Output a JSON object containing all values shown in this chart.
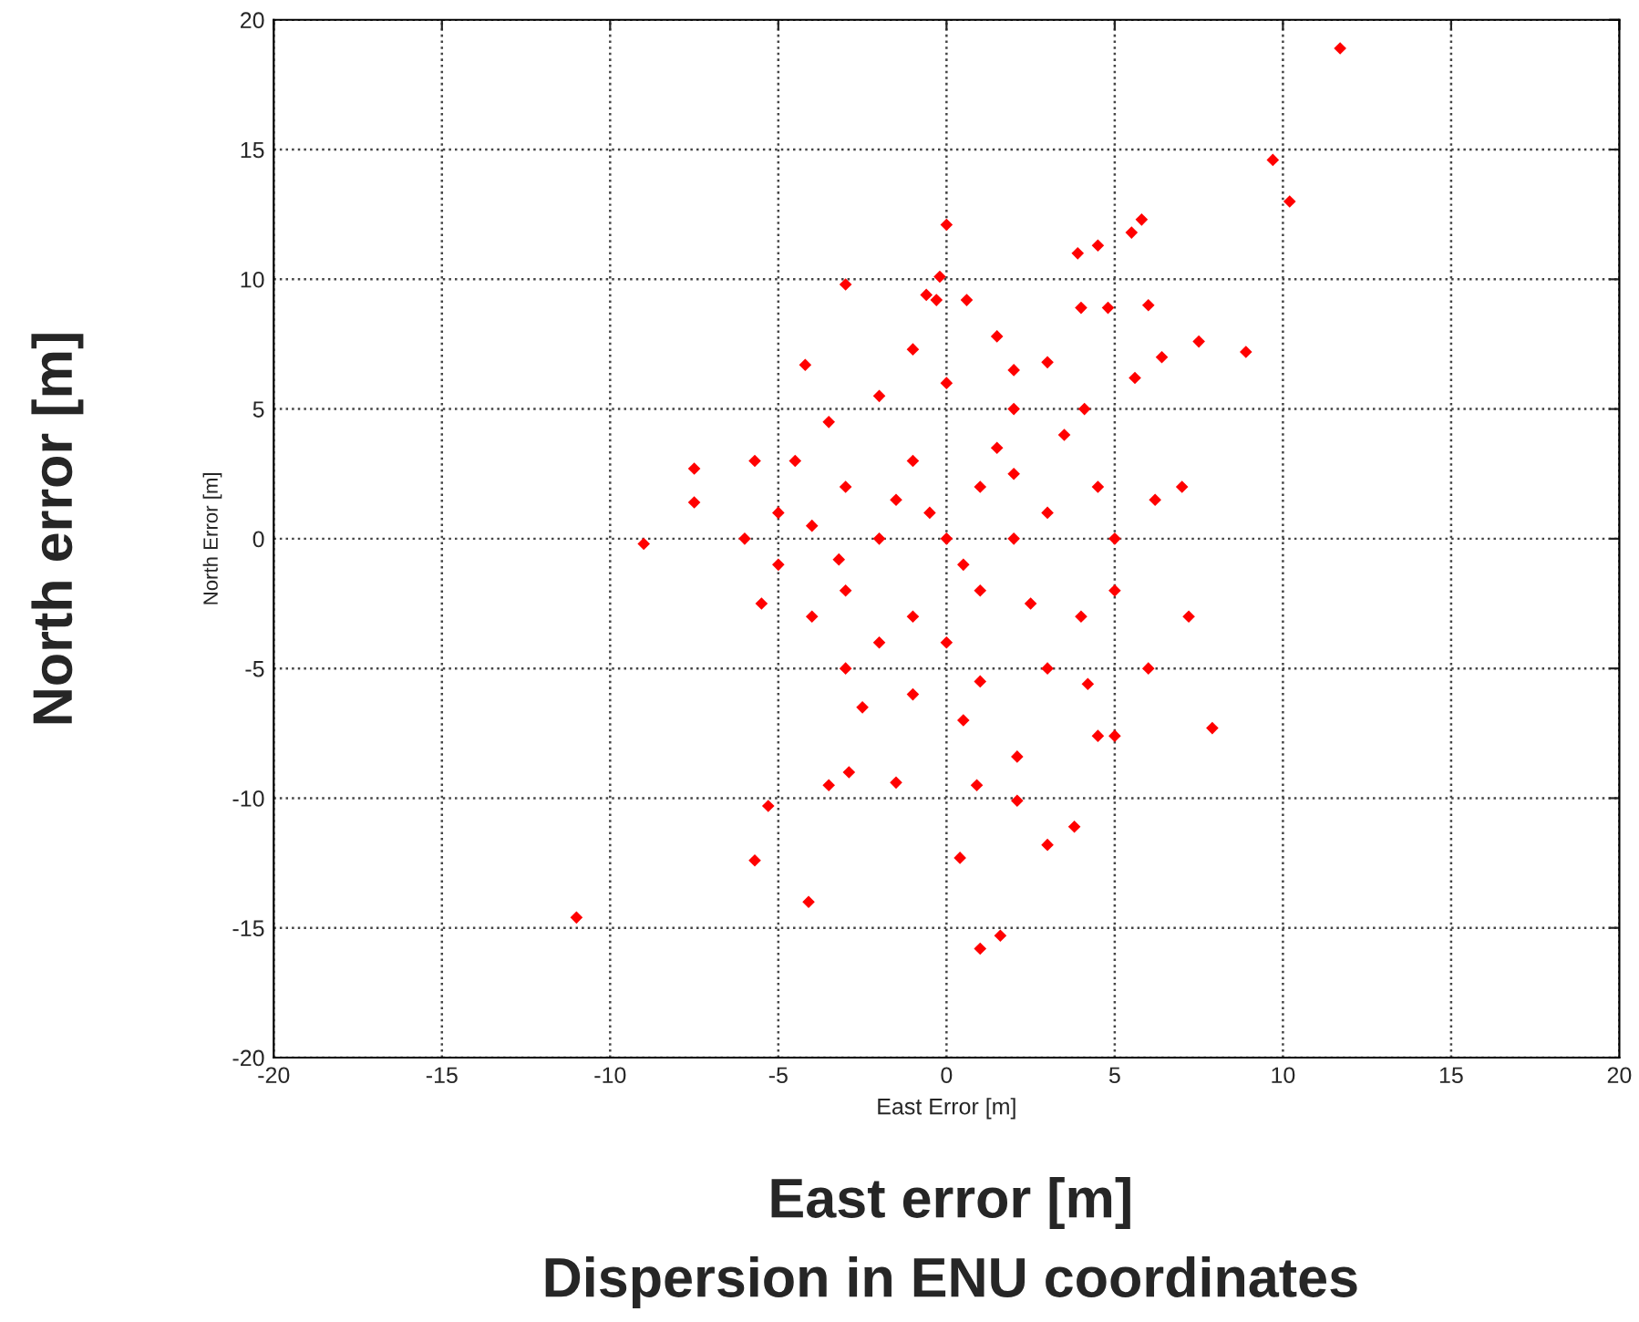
{
  "chart_data": {
    "type": "scatter",
    "title": "Dispersion in ENU coordinates",
    "xlabel": "East Error [m]",
    "ylabel": "North Error [m]",
    "annotations": [
      "North error [m]",
      "East error [m]"
    ],
    "xlim": [
      -20,
      20
    ],
    "ylim": [
      -20,
      20
    ],
    "xticks": [
      -20,
      -15,
      -10,
      -5,
      0,
      5,
      10,
      15,
      20
    ],
    "yticks": [
      -20,
      -15,
      -10,
      -5,
      0,
      5,
      10,
      15,
      20
    ],
    "grid": true,
    "marker": "diamond",
    "x": [
      11.7,
      9.7,
      10.2,
      0.0,
      5.8,
      5.5,
      4.5,
      3.9,
      -3.0,
      -0.2,
      -0.6,
      -0.3,
      0.6,
      4.0,
      4.8,
      6.0,
      1.5,
      8.9,
      7.5,
      6.4,
      -4.2,
      5.6,
      4.1,
      -5.7,
      -7.5,
      -7.5,
      -9.0,
      6.2,
      7.0,
      7.2,
      7.9,
      6.0,
      -5.3,
      -5.7,
      -4.1,
      -11.0,
      1.0,
      1.6,
      0.4,
      2.1,
      3.0,
      3.8,
      4.5,
      5.0,
      -3.5,
      -2.9,
      -1.5,
      0.9,
      2.1,
      -5.0,
      -5.0,
      -4.5,
      -4.0,
      -3.5,
      -3.0,
      -2.0,
      -1.0,
      0.0,
      1.0,
      2.0,
      3.0,
      3.5,
      4.0,
      4.5,
      5.0,
      5.0,
      -6.0,
      -5.5,
      4.2,
      -2.5,
      0.5,
      2.0,
      -1.0,
      3.0,
      -3.0,
      -3.0,
      -2.0,
      -1.0,
      -1.0,
      0.0,
      1.0,
      1.0,
      2.0,
      3.0,
      -0.5,
      0.5,
      2.5,
      -2.0,
      -4.0,
      1.5,
      -1.5,
      0.0,
      2.0,
      -3.2
    ],
    "values": [
      18.9,
      14.6,
      13.0,
      12.1,
      12.3,
      11.8,
      11.3,
      11.0,
      9.8,
      10.1,
      9.4,
      9.2,
      9.2,
      8.9,
      8.9,
      9.0,
      7.8,
      7.2,
      7.6,
      7.0,
      6.7,
      6.2,
      5.0,
      3.0,
      2.7,
      1.4,
      -0.2,
      1.5,
      2.0,
      -3.0,
      -7.3,
      -5.0,
      -10.3,
      -12.4,
      -14.0,
      -14.6,
      -15.8,
      -15.3,
      -12.3,
      -10.1,
      -11.8,
      -11.1,
      -7.6,
      -7.6,
      -9.5,
      -9.0,
      -9.4,
      -9.5,
      -8.4,
      -1.0,
      1.0,
      3.0,
      -3.0,
      4.5,
      -5.0,
      5.5,
      -6.0,
      6.0,
      -5.5,
      5.0,
      -5.0,
      4.0,
      -3.0,
      2.0,
      0.0,
      -2.0,
      0.0,
      -2.5,
      -5.6,
      -6.5,
      -7.0,
      6.5,
      7.3,
      6.8,
      2.0,
      -2.0,
      0.0,
      3.0,
      -3.0,
      0.0,
      2.0,
      -2.0,
      0.0,
      1.0,
      1.0,
      -1.0,
      -2.5,
      -4.0,
      0.5,
      3.5,
      1.5,
      -4.0,
      2.5,
      -0.8
    ],
    "color": "#ff0000"
  }
}
